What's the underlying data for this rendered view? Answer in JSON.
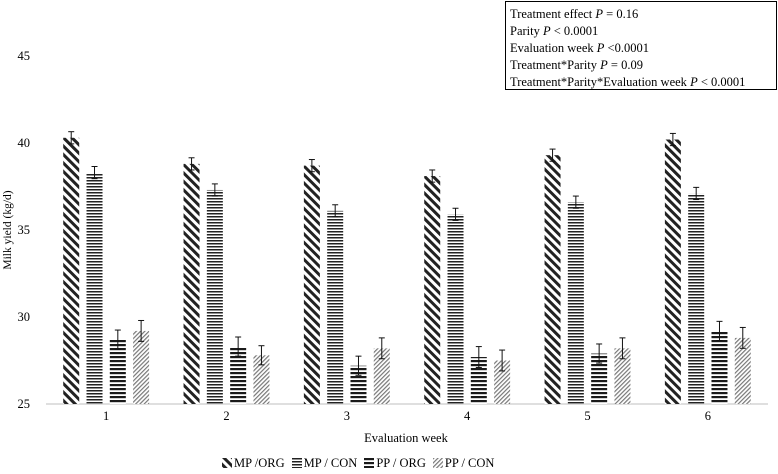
{
  "chart_data": {
    "type": "bar",
    "xlabel": "Evaluation week",
    "ylabel": "Milk yield (kg/d)",
    "ylim": [
      25,
      45
    ],
    "yticks": [
      25,
      30,
      35,
      40,
      45
    ],
    "categories": [
      "1",
      "2",
      "3",
      "4",
      "5",
      "6"
    ],
    "series": [
      {
        "name": "MP /ORG",
        "values": [
          40.3,
          38.8,
          38.7,
          38.1,
          39.3,
          40.2
        ],
        "errors": [
          0.35,
          0.35,
          0.35,
          0.35,
          0.35,
          0.35
        ],
        "pattern": "diag-back",
        "color": "#2b2b2b"
      },
      {
        "name": "MP / CON",
        "values": [
          38.3,
          37.3,
          36.1,
          35.9,
          36.6,
          37.1
        ],
        "errors": [
          0.35,
          0.35,
          0.35,
          0.35,
          0.35,
          0.35
        ],
        "pattern": "horiz",
        "color": "#2b2b2b"
      },
      {
        "name": "PP / ORG",
        "values": [
          28.7,
          28.3,
          27.2,
          27.7,
          27.9,
          29.2
        ],
        "errors": [
          0.55,
          0.55,
          0.55,
          0.6,
          0.55,
          0.55
        ],
        "pattern": "horiz-bold",
        "color": "#2b2b2b"
      },
      {
        "name": "PP / CON",
        "values": [
          29.2,
          27.8,
          28.2,
          27.5,
          28.2,
          28.8
        ],
        "errors": [
          0.6,
          0.55,
          0.6,
          0.6,
          0.6,
          0.6
        ],
        "pattern": "diag-fine",
        "color": "#7a7a7a"
      }
    ],
    "legend": "bottom",
    "grid": false
  },
  "stats_box": [
    {
      "label": "Treatment effect ",
      "p": "P",
      "value": " = 0.16"
    },
    {
      "label": "Parity            ",
      "p": "P",
      "value": " < 0.0001"
    },
    {
      "label": "Evaluation week  ",
      "p": "P",
      "value": " <0.0001"
    },
    {
      "label": "Treatment*Parity ",
      "p": "P",
      "value": " = 0.09"
    },
    {
      "label": "Treatment*Parity*Evaluation week  ",
      "p": "P",
      "value": " < 0.0001"
    }
  ]
}
